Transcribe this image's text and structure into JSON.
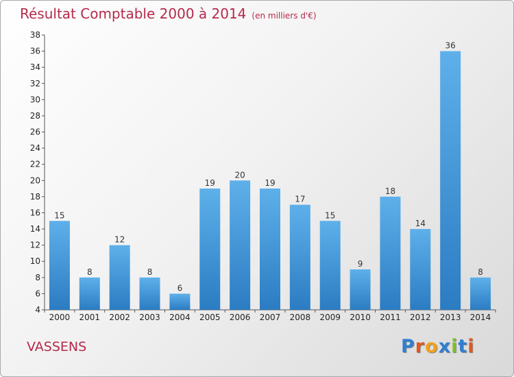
{
  "title": "Résultat Comptable 2000 à 2014",
  "unit_note": "(en milliers d'€)",
  "commune": "VASSENS",
  "logo": {
    "text": "Proxiti",
    "letter_colors": [
      "#2f7fd0",
      "#e2571e",
      "#f0a01c",
      "#2f7fd0",
      "#7fbf2a",
      "#2f7fd0",
      "#e2571e"
    ]
  },
  "colors": {
    "bar_top": "#5eb0ea",
    "bar_bottom": "#2b7cc2",
    "title": "#b5294c"
  },
  "chart_data": {
    "type": "bar",
    "title": "Résultat Comptable 2000 à 2014",
    "xlabel": "",
    "ylabel": "",
    "categories": [
      "2000",
      "2001",
      "2002",
      "2003",
      "2004",
      "2005",
      "2006",
      "2007",
      "2008",
      "2009",
      "2010",
      "2011",
      "2012",
      "2013",
      "2014"
    ],
    "values": [
      15,
      8,
      12,
      8,
      6,
      19,
      20,
      19,
      17,
      15,
      9,
      18,
      14,
      36,
      8
    ],
    "ylim": [
      4,
      38
    ],
    "yticks": [
      4,
      6,
      8,
      10,
      12,
      14,
      16,
      18,
      20,
      22,
      24,
      26,
      28,
      30,
      32,
      34,
      36,
      38
    ],
    "grid": false,
    "legend": "none"
  }
}
